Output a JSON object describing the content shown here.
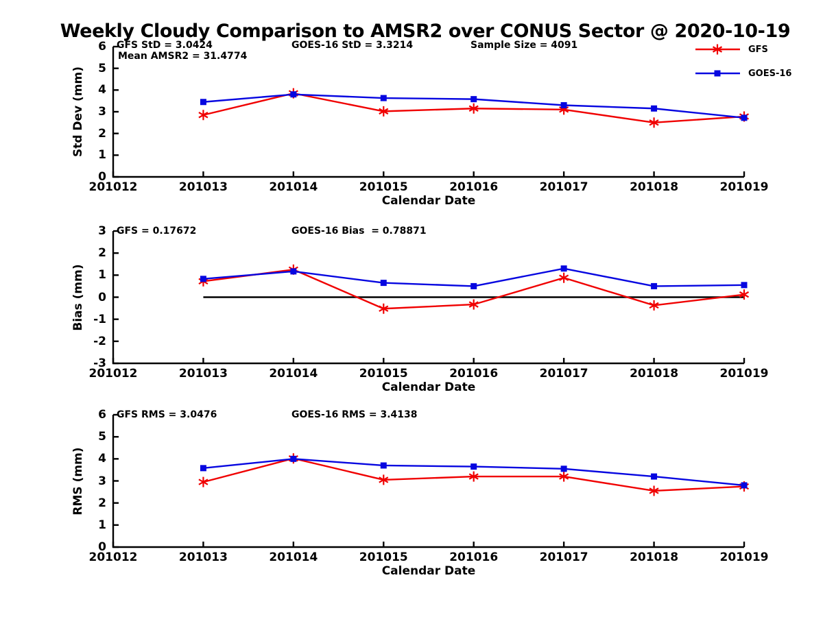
{
  "title": "Weekly Cloudy Comparison to AMSR2 over CONUS Sector @ 2020-10-19",
  "legend": {
    "items": [
      {
        "label": "GFS",
        "color": "#f00000",
        "marker": "asterisk"
      },
      {
        "label": "GOES-16",
        "color": "#0606e0",
        "marker": "square"
      }
    ]
  },
  "chart_data": [
    {
      "type": "line",
      "ylabel": "Std Dev (mm)",
      "xlabel": "Calendar Date",
      "ylim": [
        0,
        6
      ],
      "yticks": [
        0,
        1,
        2,
        3,
        4,
        5,
        6
      ],
      "grid": false,
      "legend_position": "upper-right-outside",
      "x_categories": [
        "201012",
        "201013",
        "201014",
        "201015",
        "201016",
        "201017",
        "201018",
        "201019"
      ],
      "data_x": [
        "201013",
        "201014",
        "201015",
        "201016",
        "201017",
        "201018",
        "201019"
      ],
      "series": [
        {
          "name": "GFS",
          "color": "#f00000",
          "marker": "asterisk",
          "values": [
            2.85,
            3.85,
            3.02,
            3.15,
            3.1,
            2.5,
            2.78
          ]
        },
        {
          "name": "GOES-16",
          "color": "#0606e0",
          "marker": "square",
          "values": [
            3.45,
            3.8,
            3.63,
            3.58,
            3.3,
            3.15,
            2.72
          ]
        }
      ],
      "annotations": [
        {
          "text": "GFS StD = 3.0424"
        },
        {
          "text": "Mean AMSR2 = 31.4774"
        },
        {
          "text": "GOES-16 StD = 3.3214"
        },
        {
          "text": "Sample Size = 4091"
        }
      ]
    },
    {
      "type": "line",
      "ylabel": "Bias (mm)",
      "xlabel": "Calendar Date",
      "ylim": [
        -3,
        3
      ],
      "yticks": [
        -3,
        -2,
        -1,
        0,
        1,
        2,
        3
      ],
      "grid": false,
      "zero_line": true,
      "x_categories": [
        "201012",
        "201013",
        "201014",
        "201015",
        "201016",
        "201017",
        "201018",
        "201019"
      ],
      "data_x": [
        "201013",
        "201014",
        "201015",
        "201016",
        "201017",
        "201018",
        "201019"
      ],
      "series": [
        {
          "name": "GFS",
          "color": "#f00000",
          "marker": "asterisk",
          "values": [
            0.72,
            1.25,
            -0.52,
            -0.33,
            0.88,
            -0.37,
            0.12
          ]
        },
        {
          "name": "GOES-16",
          "color": "#0606e0",
          "marker": "square",
          "values": [
            0.83,
            1.17,
            0.65,
            0.5,
            1.3,
            0.5,
            0.55
          ]
        }
      ],
      "annotations": [
        {
          "text": "GFS = 0.17672"
        },
        {
          "text": "GOES-16 Bias  = 0.78871"
        }
      ]
    },
    {
      "type": "line",
      "ylabel": "RMS (mm)",
      "xlabel": "Calendar Date",
      "ylim": [
        0,
        6
      ],
      "yticks": [
        0,
        1,
        2,
        3,
        4,
        5,
        6
      ],
      "grid": false,
      "x_categories": [
        "201012",
        "201013",
        "201014",
        "201015",
        "201016",
        "201017",
        "201018",
        "201019"
      ],
      "data_x": [
        "201013",
        "201014",
        "201015",
        "201016",
        "201017",
        "201018",
        "201019"
      ],
      "series": [
        {
          "name": "GFS",
          "color": "#f00000",
          "marker": "asterisk",
          "values": [
            2.95,
            4.02,
            3.05,
            3.2,
            3.2,
            2.55,
            2.75
          ]
        },
        {
          "name": "GOES-16",
          "color": "#0606e0",
          "marker": "square",
          "values": [
            3.58,
            4.0,
            3.7,
            3.65,
            3.55,
            3.2,
            2.8
          ]
        }
      ],
      "annotations": [
        {
          "text": "GFS RMS = 3.0476"
        },
        {
          "text": "GOES-16 RMS = 3.4138"
        }
      ]
    }
  ]
}
